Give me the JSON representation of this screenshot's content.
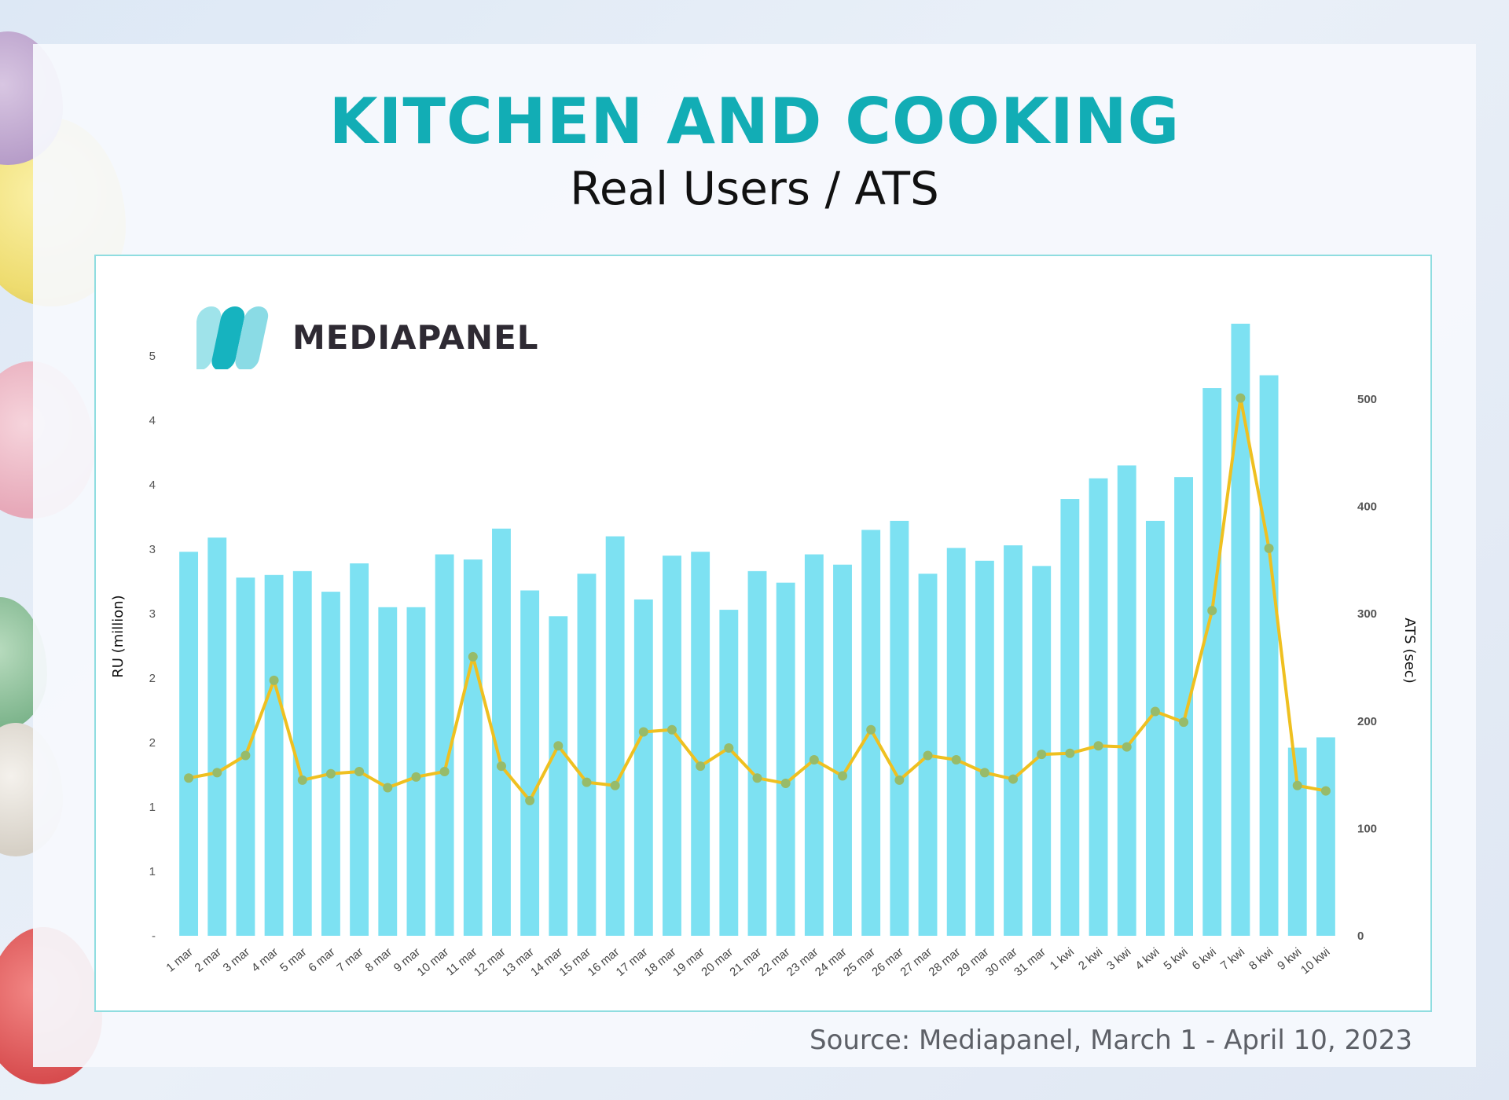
{
  "header": {
    "title": "KITCHEN AND COOKING",
    "subtitle": "Real Users / ATS"
  },
  "logo": {
    "text": "MEDIAPANEL"
  },
  "source": "Source: Mediapanel, March 1 - April 10, 2023",
  "colors": {
    "title": "#12adb5",
    "bars": "#7de1f2",
    "line": "#efc020",
    "markers": "#97bb6a",
    "panel_border": "#8fdde0"
  },
  "chart_data": {
    "type": "bar",
    "title": "",
    "categories": [
      "1 mar",
      "2 mar",
      "3 mar",
      "4 mar",
      "5 mar",
      "6 mar",
      "7 mar",
      "8 mar",
      "9 mar",
      "10 mar",
      "11 mar",
      "12 mar",
      "13 mar",
      "14 mar",
      "15 mar",
      "16 mar",
      "17 mar",
      "18 mar",
      "19 mar",
      "20 mar",
      "21 mar",
      "22 mar",
      "23 mar",
      "24 mar",
      "25 mar",
      "26 mar",
      "27 mar",
      "28 mar",
      "29 mar",
      "30 mar",
      "31 mar",
      "1 kwi",
      "2 kwi",
      "3 kwi",
      "4 kwi",
      "5 kwi",
      "6 kwi",
      "7 kwi",
      "8 kwi",
      "9 kwi",
      "10 kwi"
    ],
    "ylabel": "RU (million)",
    "y2label": "ATS (sec)",
    "y_tick_labels": [
      "-",
      "1",
      "1",
      "2",
      "2",
      "3",
      "3",
      "4",
      "4",
      "5"
    ],
    "y_tick_values": [
      0,
      0.5,
      1,
      1.5,
      2,
      2.5,
      3,
      3.5,
      4,
      4.5
    ],
    "y2_tick_labels": [
      "0",
      "100",
      "200",
      "300",
      "400",
      "500"
    ],
    "y2_tick_values": [
      0,
      100,
      200,
      300,
      400,
      500
    ],
    "ylim": [
      0,
      5
    ],
    "y2lim": [
      0,
      580
    ],
    "series": [
      {
        "type": "bar",
        "axis": "left",
        "values": [
          2.98,
          3.09,
          2.78,
          2.8,
          2.83,
          2.67,
          2.89,
          2.55,
          2.55,
          2.96,
          2.92,
          3.16,
          2.68,
          2.48,
          2.81,
          3.1,
          2.61,
          2.95,
          2.98,
          2.53,
          2.83,
          2.74,
          2.96,
          2.88,
          3.15,
          3.22,
          2.81,
          3.01,
          2.91,
          3.03,
          2.87,
          3.39,
          3.55,
          3.65,
          3.22,
          3.56,
          4.25,
          4.75,
          4.35,
          1.46,
          1.54
        ]
      },
      {
        "type": "line",
        "axis": "right",
        "values": [
          147,
          152,
          168,
          238,
          145,
          151,
          153,
          138,
          148,
          153,
          260,
          158,
          126,
          177,
          143,
          140,
          190,
          192,
          158,
          175,
          147,
          142,
          164,
          149,
          192,
          145,
          168,
          164,
          152,
          146,
          169,
          170,
          177,
          176,
          209,
          199,
          303,
          501,
          361,
          140,
          135
        ]
      }
    ]
  }
}
